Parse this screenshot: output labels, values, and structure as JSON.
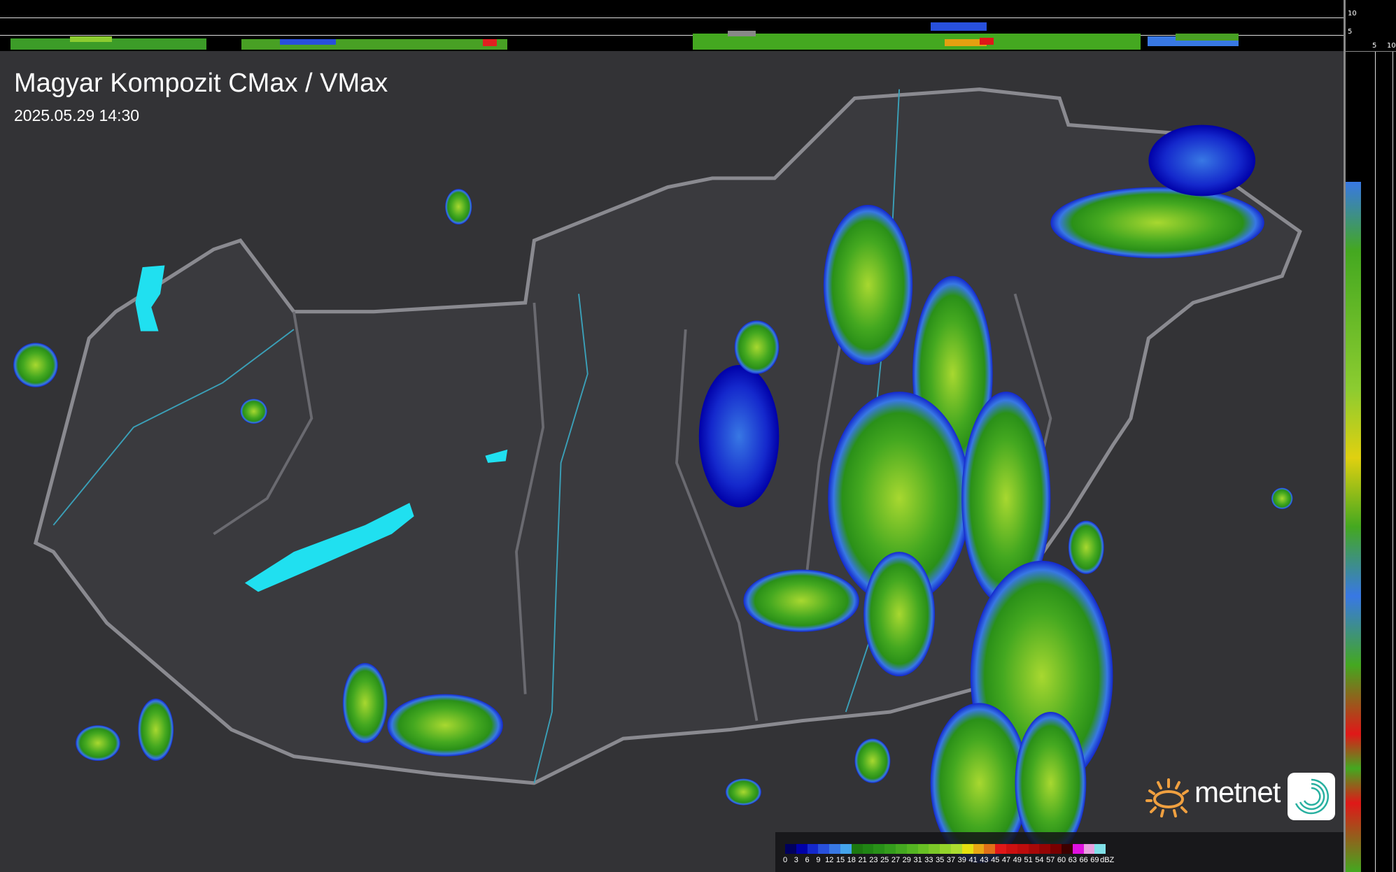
{
  "header": {
    "title": "Magyar Kompozit CMax / VMax",
    "timestamp": "2025.05.29 14:30"
  },
  "profile_scales": {
    "top_ticks": [
      "10",
      "5"
    ],
    "right_ticks": [
      "5",
      "10"
    ]
  },
  "legend": {
    "unit": "dBZ",
    "labels": [
      "0",
      "3",
      "6",
      "9",
      "12",
      "15",
      "18",
      "21",
      "23",
      "25",
      "27",
      "29",
      "31",
      "33",
      "35",
      "37",
      "39",
      "41",
      "43",
      "45",
      "47",
      "49",
      "51",
      "54",
      "57",
      "60",
      "63",
      "66",
      "69"
    ],
    "colors": [
      "#00005e",
      "#0000a8",
      "#1428cc",
      "#2850dc",
      "#3878e4",
      "#44a4ec",
      "#1c7810",
      "#208414",
      "#289018",
      "#349c1c",
      "#44a820",
      "#54b422",
      "#68c024",
      "#7cc828",
      "#94d42a",
      "#acdc30",
      "#e4e010",
      "#e8a814",
      "#e07018",
      "#e01818",
      "#cc1010",
      "#bc0c0c",
      "#a80808",
      "#940404",
      "#780000",
      "#3c0000",
      "#e010e0",
      "#e8a0e0",
      "#80e0e8"
    ]
  },
  "branding": {
    "logo_text": "metnet"
  },
  "colors": {
    "background": "#2e2e30",
    "lake": "#20e0f0",
    "border": "#8a8a90",
    "river": "#3aa0b8"
  }
}
